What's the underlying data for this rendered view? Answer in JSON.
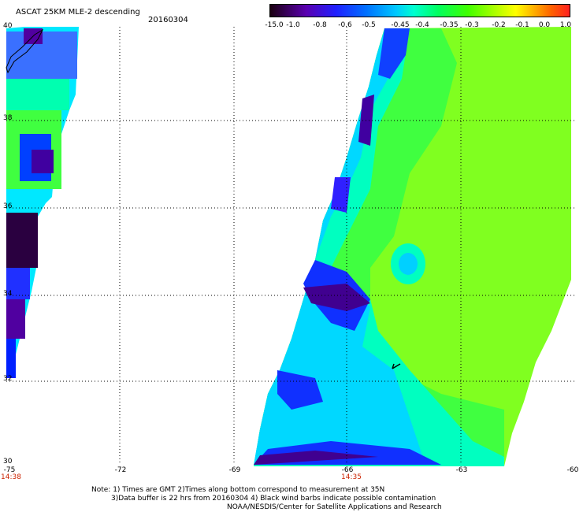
{
  "header": {
    "title": "ASCAT 25KM MLE-2 descending",
    "date": "20160304"
  },
  "colorbar": {
    "ticks": [
      "-15.0",
      "-1.0",
      "-0.8",
      "-0.6",
      "-0.5",
      "-0.45",
      "-0.4",
      "-0.35",
      "-0.3",
      "-0.2",
      "-0.1",
      "0.0",
      "1.0"
    ]
  },
  "axes": {
    "lat_labels": [
      "40",
      "38",
      "36",
      "34",
      "32",
      "30"
    ],
    "lon_labels": [
      "-75",
      "-72",
      "-69",
      "-66",
      "-63",
      "-60"
    ],
    "time_labels": [
      "14:38",
      "14:35"
    ]
  },
  "notes": {
    "line1": "Note: 1) Times are GMT 2)Times along bottom correspond to measurement at 35N",
    "line2": "3)Data buffer is 22 hrs from 20160304 4) Black wind barbs indicate possible contamination",
    "line3": "NOAA/NESDIS/Center for Satellite Applications and Research"
  },
  "colors": {
    "background": "#ffffff",
    "time_label": "#cc2200",
    "grid": "#000000"
  }
}
